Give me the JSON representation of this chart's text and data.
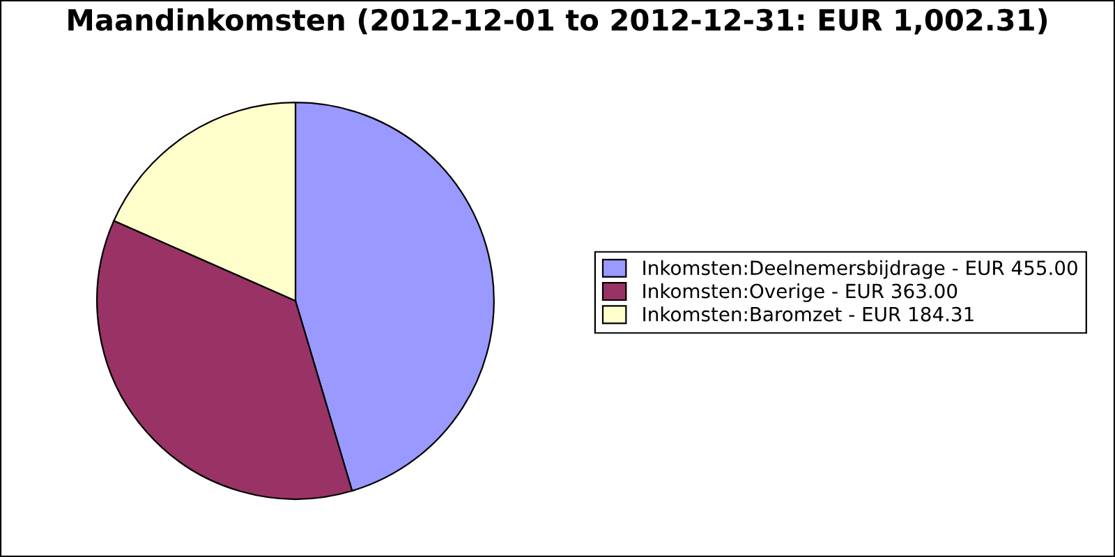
{
  "chart_data": {
    "type": "pie",
    "title": "Maandinkomsten (2012-12-01 to 2012-12-31: EUR 1,002.31)",
    "categories": [
      "Inkomsten:Deelnemersbijdrage - EUR 455.00",
      "Inkomsten:Overige - EUR 363.00",
      "Inkomsten:Baromzet - EUR 184.31"
    ],
    "values": [
      455.0,
      363.0,
      184.31
    ],
    "colors": [
      "#9999ff",
      "#993366",
      "#ffffcc"
    ],
    "legend": "right"
  }
}
